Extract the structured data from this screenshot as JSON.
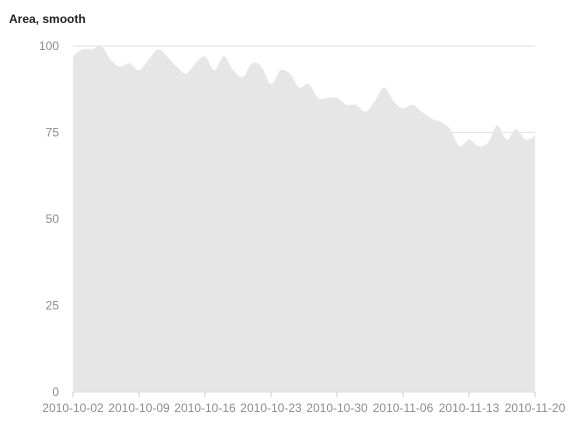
{
  "chart_data": {
    "type": "area",
    "title": "Area, smooth",
    "xlabel": "",
    "ylabel": "",
    "ylim": [
      0,
      100
    ],
    "yticks": [
      0,
      25,
      50,
      75,
      100
    ],
    "xtick_labels": [
      "2010-10-02",
      "2010-10-09",
      "2010-10-16",
      "2010-10-23",
      "2010-10-30",
      "2010-11-06",
      "2010-11-13",
      "2010-11-20"
    ],
    "grid": true,
    "curve": "smooth",
    "fill_color": "#e6e6e6",
    "x": [
      "2010-10-02",
      "2010-10-03",
      "2010-10-04",
      "2010-10-05",
      "2010-10-06",
      "2010-10-07",
      "2010-10-08",
      "2010-10-09",
      "2010-10-10",
      "2010-10-11",
      "2010-10-12",
      "2010-10-13",
      "2010-10-14",
      "2010-10-15",
      "2010-10-16",
      "2010-10-17",
      "2010-10-18",
      "2010-10-19",
      "2010-10-20",
      "2010-10-21",
      "2010-10-22",
      "2010-10-23",
      "2010-10-24",
      "2010-10-25",
      "2010-10-26",
      "2010-10-27",
      "2010-10-28",
      "2010-10-29",
      "2010-10-30",
      "2010-10-31",
      "2010-11-01",
      "2010-11-02",
      "2010-11-03",
      "2010-11-04",
      "2010-11-05",
      "2010-11-06",
      "2010-11-07",
      "2010-11-08",
      "2010-11-09",
      "2010-11-10",
      "2010-11-11",
      "2010-11-12",
      "2010-11-13",
      "2010-11-14",
      "2010-11-15",
      "2010-11-16",
      "2010-11-17",
      "2010-11-18",
      "2010-11-19",
      "2010-11-20"
    ],
    "values": [
      97,
      99,
      99,
      100,
      96,
      94,
      95,
      93,
      96,
      99,
      97,
      94,
      92,
      95,
      97,
      93,
      97,
      93,
      91,
      95,
      94,
      89,
      93,
      92,
      88,
      89,
      85,
      85,
      85,
      83,
      83,
      81,
      84,
      88,
      84,
      82,
      83,
      81,
      79,
      78,
      76,
      71,
      73,
      71,
      72,
      77,
      73,
      76,
      73,
      74
    ]
  }
}
